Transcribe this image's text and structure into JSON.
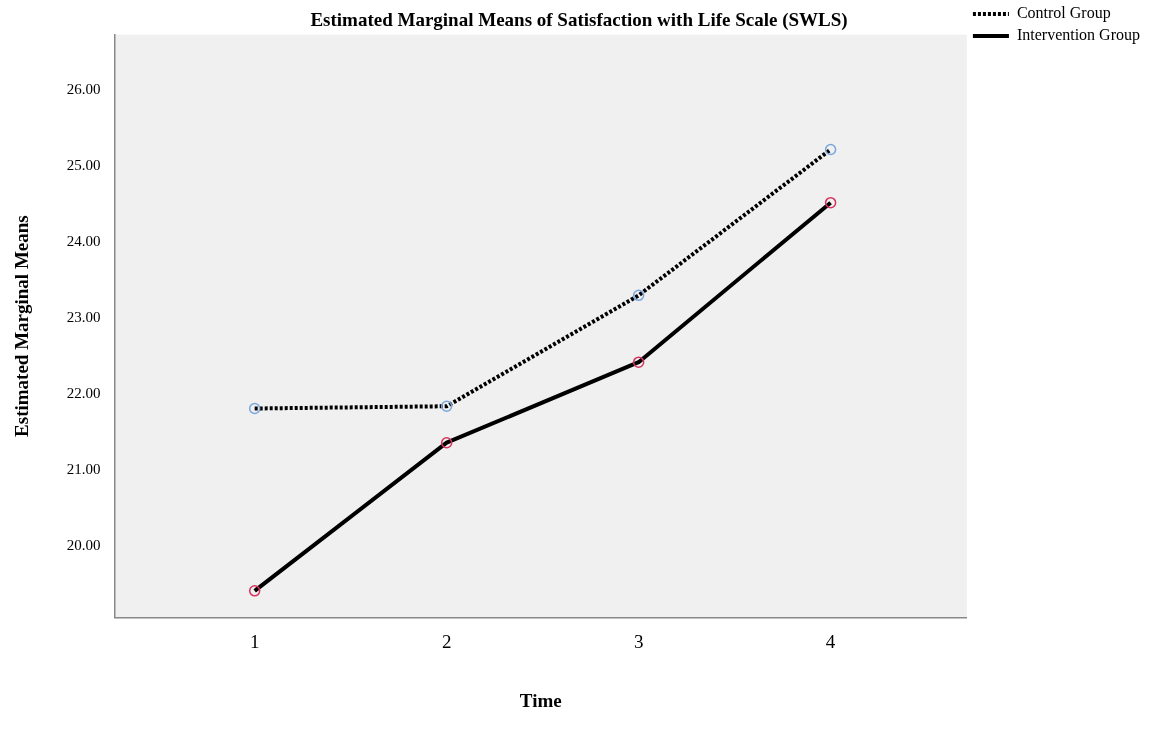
{
  "chart_data": {
    "type": "line",
    "title": "Estimated Marginal Means of Satisfaction with Life Scale (SWLS)",
    "xlabel": "Time",
    "ylabel": "Estimated Marginal Means",
    "x": [
      1,
      2,
      3,
      4
    ],
    "xlim": [
      0.27,
      4.71
    ],
    "xticks": [
      1,
      2,
      3,
      4
    ],
    "ylim": [
      19.06,
      26.73
    ],
    "yticks": [
      {
        "value": 20,
        "label": "20.00"
      },
      {
        "value": 21,
        "label": "21.00"
      },
      {
        "value": 22,
        "label": "22.00"
      },
      {
        "value": 23,
        "label": "23.00"
      },
      {
        "value": 24,
        "label": "24.00"
      },
      {
        "value": 25,
        "label": "25.00"
      },
      {
        "value": 26,
        "label": "26.00"
      }
    ],
    "grid": false,
    "legend": "top right",
    "marker": "circle",
    "series": [
      {
        "name": "Control Group",
        "color": "#000000",
        "colors": [
          "#7aa6dc",
          "#7aa6dc",
          "#7aa6dc",
          "#7aa6dc"
        ],
        "line_style": "dotted",
        "values": [
          21.81,
          21.84,
          23.3,
          25.22
        ]
      },
      {
        "name": "Intervention Group",
        "color": "#000000",
        "colors": [
          "#d6335f",
          "#d6335f",
          "#d6335f",
          "#d6335f"
        ],
        "line_style": "solid",
        "values": [
          19.41,
          21.36,
          22.42,
          24.52
        ]
      }
    ]
  }
}
